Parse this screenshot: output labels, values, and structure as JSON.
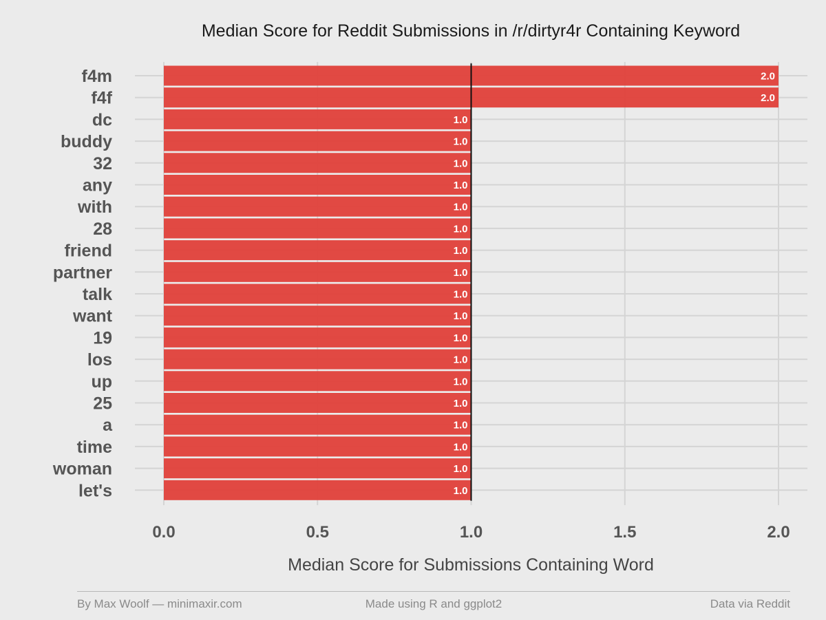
{
  "chart_data": {
    "type": "bar",
    "orientation": "horizontal",
    "title": "Median Score for Reddit Submissions in /r/dirtyr4r Containing Keyword",
    "xlabel": "Median Score for Submissions Containing Word",
    "ylabel": "",
    "categories": [
      "f4m",
      "f4f",
      "dc",
      "buddy",
      "32",
      "any",
      "with",
      "28",
      "friend",
      "partner",
      "talk",
      "want",
      "19",
      "los",
      "up",
      "25",
      "a",
      "time",
      "woman",
      "let's"
    ],
    "values": [
      2.0,
      2.0,
      1.0,
      1.0,
      1.0,
      1.0,
      1.0,
      1.0,
      1.0,
      1.0,
      1.0,
      1.0,
      1.0,
      1.0,
      1.0,
      1.0,
      1.0,
      1.0,
      1.0,
      1.0
    ],
    "value_labels": [
      "2.0",
      "2.0",
      "1.0",
      "1.0",
      "1.0",
      "1.0",
      "1.0",
      "1.0",
      "1.0",
      "1.0",
      "1.0",
      "1.0",
      "1.0",
      "1.0",
      "1.0",
      "1.0",
      "1.0",
      "1.0",
      "1.0",
      "1.0"
    ],
    "xlim": [
      0,
      2
    ],
    "xticks": [
      0,
      0.5,
      1,
      1.5,
      2
    ],
    "xtick_labels": [
      "0.0",
      "0.5",
      "1.0",
      "1.5",
      "2.0"
    ],
    "reference_line": 1.0,
    "grid": true,
    "legend": "none",
    "bar_color": "#e0403a",
    "background_color": "#ebebeb"
  },
  "footer": {
    "left": "By Max Woolf — minimaxir.com",
    "center": "Made using R and ggplot2",
    "right": "Data via Reddit"
  }
}
